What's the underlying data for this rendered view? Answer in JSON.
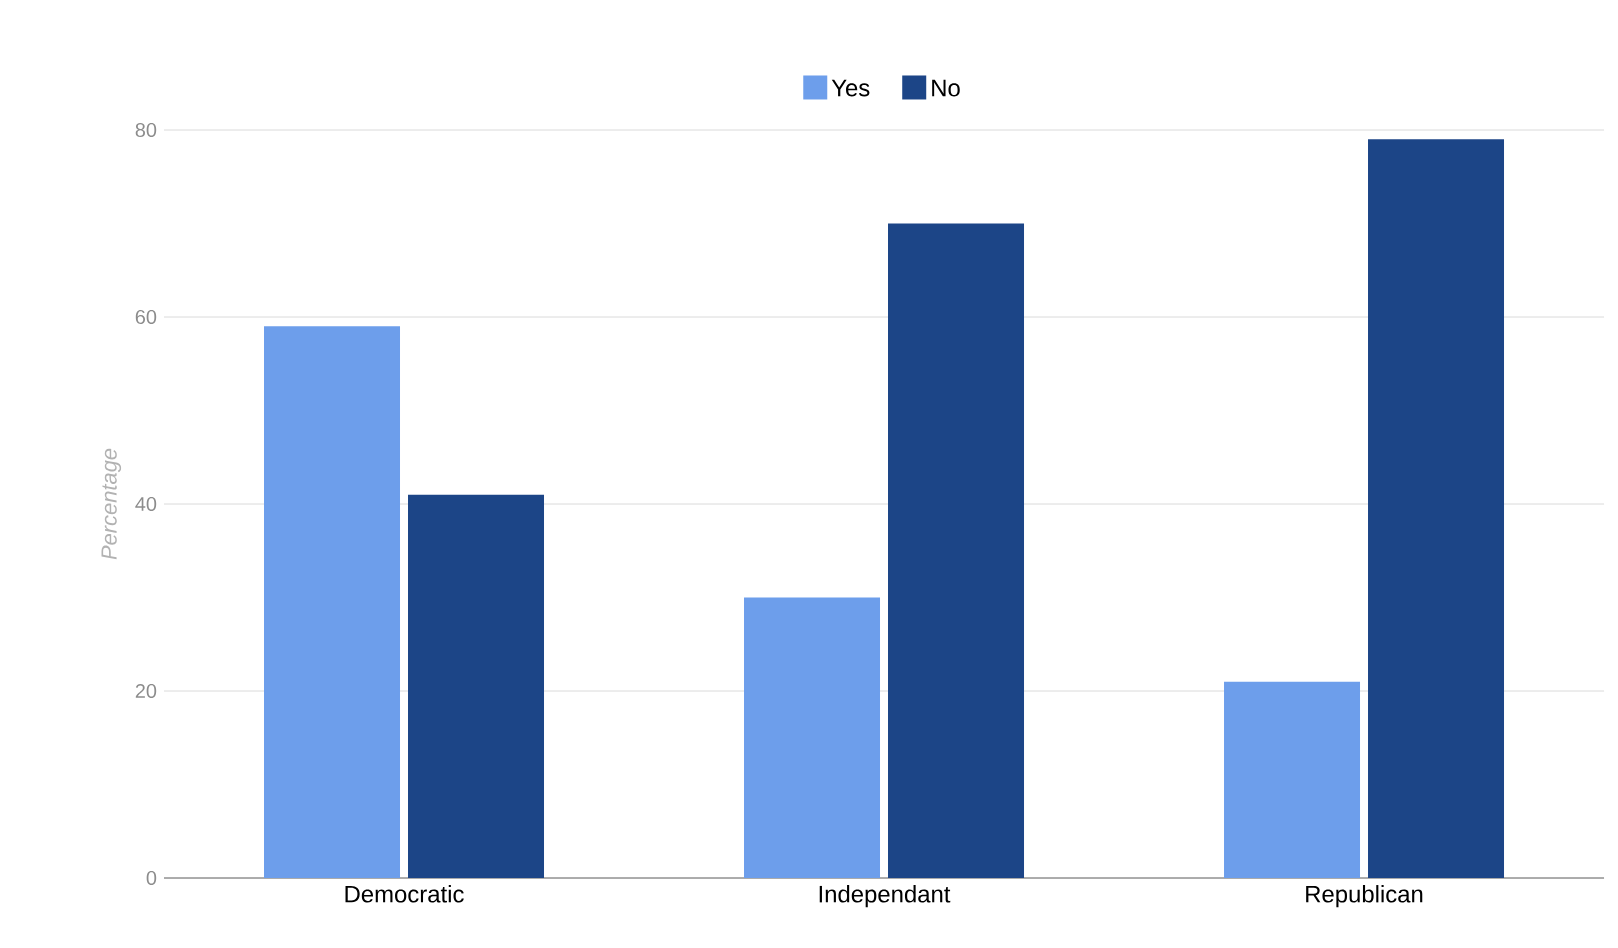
{
  "chart_data": {
    "type": "bar",
    "ylabel": "Percentage",
    "categories": [
      "Democratic",
      "Independant",
      "Republican"
    ],
    "series": [
      {
        "name": "Yes",
        "color": "#6d9eeb",
        "values": [
          59,
          30,
          21
        ]
      },
      {
        "name": "No",
        "color": "#1c4587",
        "values": [
          41,
          70,
          79
        ]
      }
    ],
    "ylim": [
      0,
      80
    ],
    "yticks": [
      0,
      20,
      40,
      60,
      80
    ],
    "grid": "y",
    "legend": "top"
  }
}
